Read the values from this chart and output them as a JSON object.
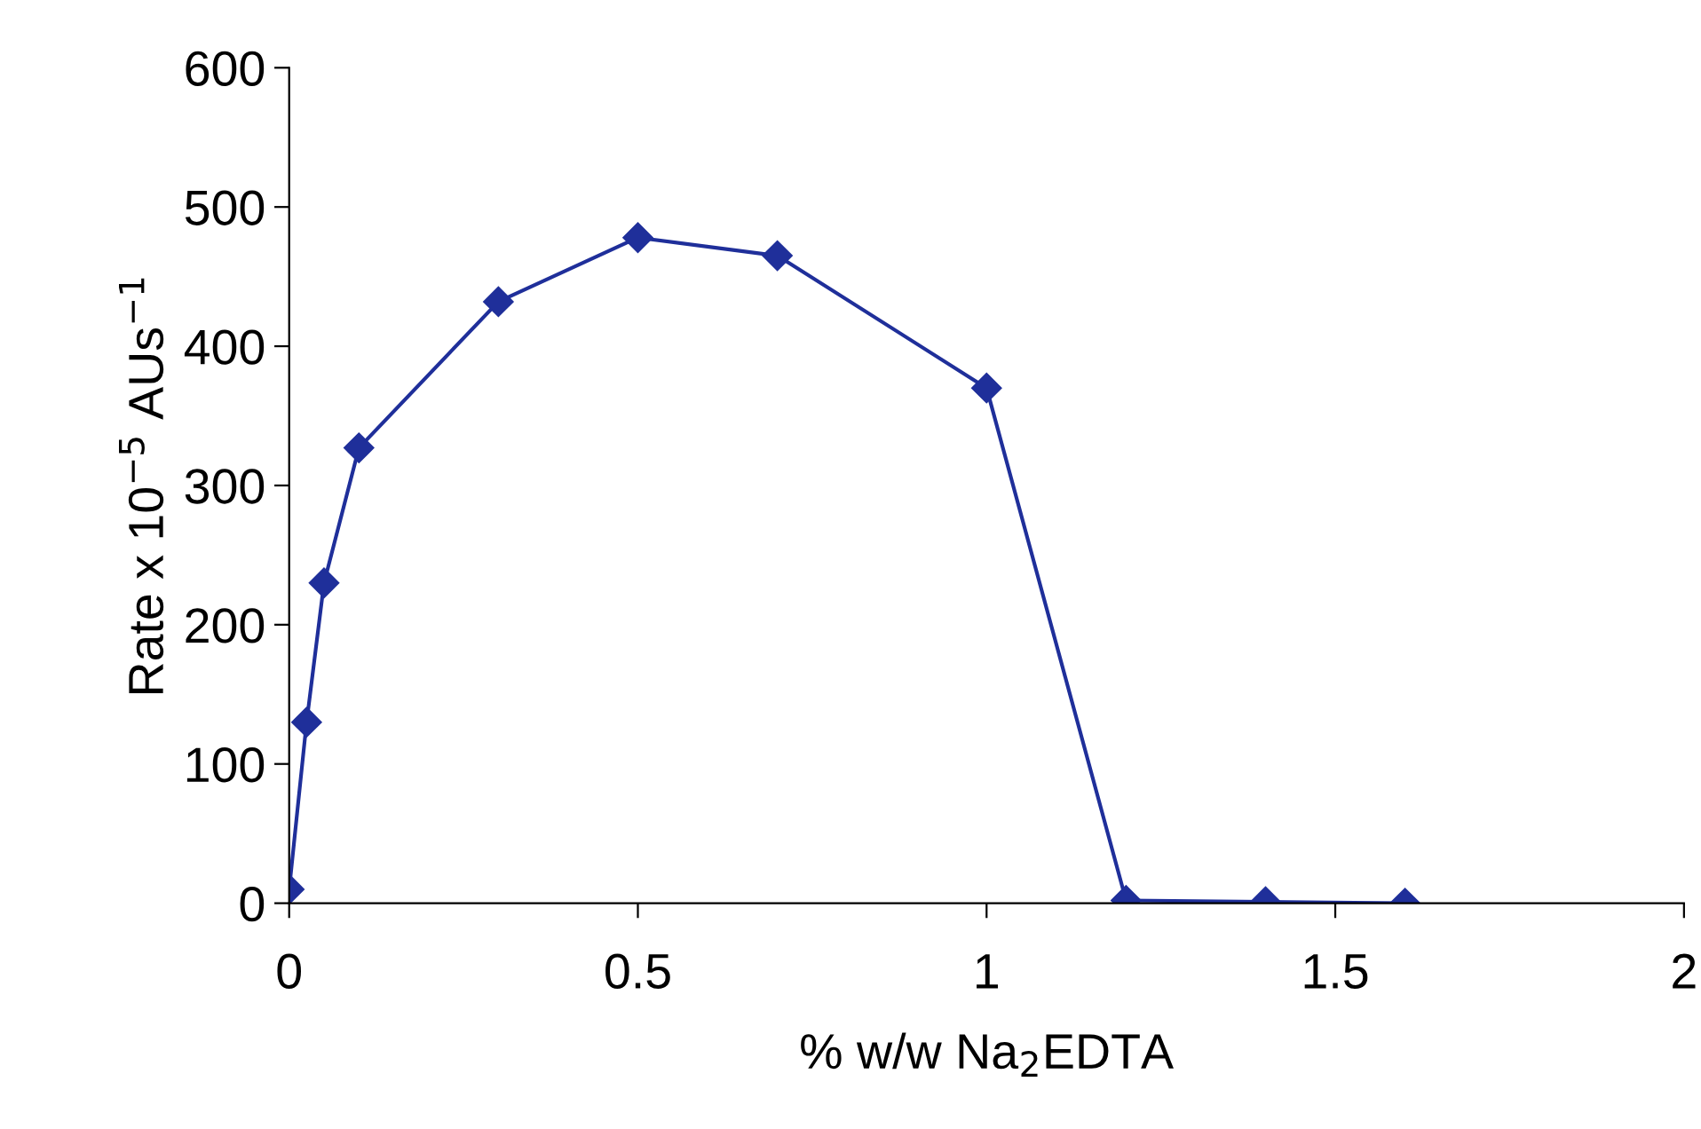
{
  "chart_data": {
    "type": "line",
    "xlabel": "% w/w Na$_{2}$EDTA",
    "ylabel": "Rate x 10$^{−5}$ AUs$^{−1}$",
    "x": [
      0,
      0.025,
      0.05,
      0.1,
      0.3,
      0.5,
      0.7,
      1.0,
      1.2,
      1.4,
      1.6
    ],
    "series": [
      {
        "color": "#1f2f9a",
        "values": [
          10,
          130,
          230,
          327,
          432,
          478,
          465,
          370,
          2,
          1,
          0
        ]
      }
    ],
    "xlim": [
      0,
      2
    ],
    "xticks": [
      0,
      0.5,
      1,
      1.5,
      2
    ],
    "ylim": [
      0,
      600
    ],
    "yticks": [
      0,
      100,
      200,
      300,
      400,
      500,
      600
    ],
    "grid": false,
    "legend": false,
    "marker": "diamond",
    "line_style": "solid"
  }
}
